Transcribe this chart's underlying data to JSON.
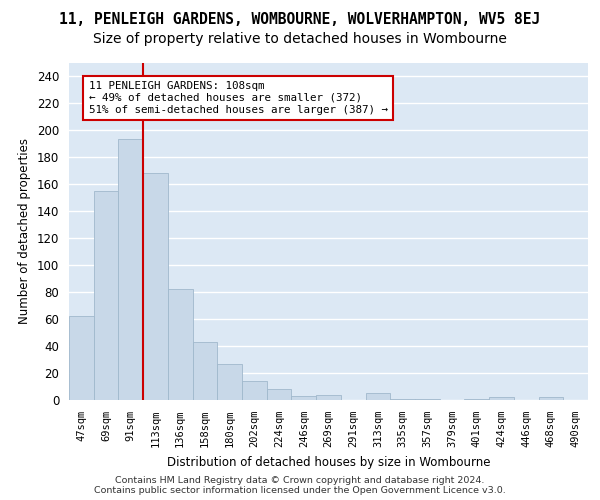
{
  "title_line1": "11, PENLEIGH GARDENS, WOMBOURNE, WOLVERHAMPTON, WV5 8EJ",
  "title_line2": "Size of property relative to detached houses in Wombourne",
  "xlabel": "Distribution of detached houses by size in Wombourne",
  "ylabel": "Number of detached properties",
  "footer_line1": "Contains HM Land Registry data © Crown copyright and database right 2024.",
  "footer_line2": "Contains public sector information licensed under the Open Government Licence v3.0.",
  "categories": [
    "47sqm",
    "69sqm",
    "91sqm",
    "113sqm",
    "136sqm",
    "158sqm",
    "180sqm",
    "202sqm",
    "224sqm",
    "246sqm",
    "269sqm",
    "291sqm",
    "313sqm",
    "335sqm",
    "357sqm",
    "379sqm",
    "401sqm",
    "424sqm",
    "446sqm",
    "468sqm",
    "490sqm"
  ],
  "values": [
    62,
    155,
    193,
    168,
    82,
    43,
    27,
    14,
    8,
    3,
    4,
    0,
    5,
    1,
    1,
    0,
    1,
    2,
    0,
    2,
    0
  ],
  "bar_color": "#c8d8e8",
  "bar_edge_color": "#a0b8cc",
  "redline_index": 3,
  "annotation_line1": "11 PENLEIGH GARDENS: 108sqm",
  "annotation_line2": "← 49% of detached houses are smaller (372)",
  "annotation_line3": "51% of semi-detached houses are larger (387) →",
  "ylim_max": 250,
  "yticks": [
    0,
    20,
    40,
    60,
    80,
    100,
    120,
    140,
    160,
    180,
    200,
    220,
    240
  ],
  "bg_color": "#dce8f4",
  "grid_color": "#ffffff",
  "title1_fontsize": 10.5,
  "title2_fontsize": 10
}
